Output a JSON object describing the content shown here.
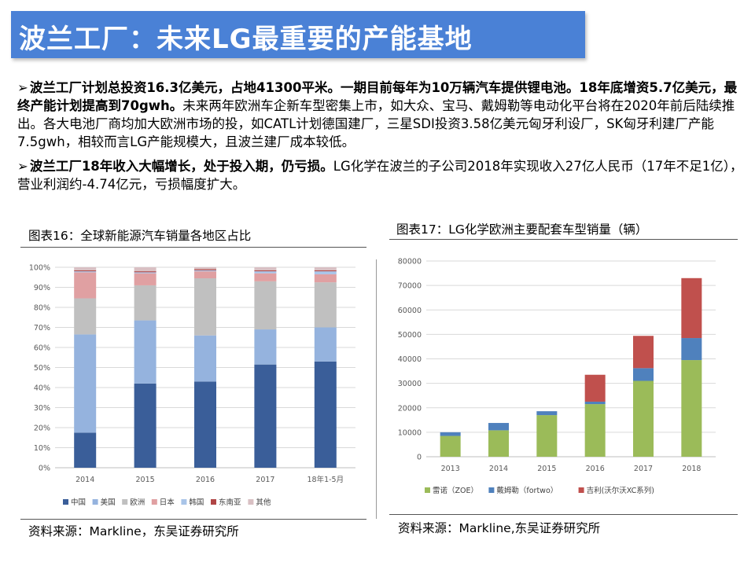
{
  "title": "波兰工厂：未来LG最重要的产能基地",
  "bullets": [
    {
      "arrow": "➢",
      "bold": "波兰工厂计划总投资16.3亿美元，占地41300平米。一期目前每年为10万辆汽车提供锂电池。18年底增资5.7亿美元，最终产能计划提高到70gwh。",
      "text": "未来两年欧洲车企新车型密集上市，如大众、宝马、戴姆勒等电动化平台将在2020年前后陆续推出。各大电池厂商均加大欧洲市场的投，如CATL计划德国建厂，三星SDI投资3.58亿美元匈牙利设厂，SK匈牙利建厂产能7.5gwh，相较而言LG产能规模大，且波兰建厂成本较低。"
    },
    {
      "arrow": "➢",
      "bold": "波兰工厂18年收入大幅增长，处于投入期，仍亏损。",
      "text": "LG化学在波兰的子公司2018年实现收入27亿人民币（17年不足1亿），营业利润约-4.74亿元，亏损幅度扩大。"
    }
  ],
  "figure16": {
    "caption": "图表16：全球新能源汽车销量各地区占比",
    "source": "资料来源：Markline，东吴证券研究所"
  },
  "figure17": {
    "caption": "图表17：LG化学欧洲主要配套车型销量（辆）",
    "source": "资料来源：Markline,东吴证券研究所"
  },
  "chart_data": [
    {
      "type": "bar",
      "stacked": true,
      "normalized": true,
      "title": "图表16：全球新能源汽车销量各地区占比",
      "categories": [
        "2014",
        "2015",
        "2016",
        "2017",
        "18年1-5月"
      ],
      "ylim": [
        0,
        100
      ],
      "yticks": [
        "0%",
        "10%",
        "20%",
        "30%",
        "40%",
        "50%",
        "60%",
        "70%",
        "80%",
        "90%",
        "100%"
      ],
      "legend_position": "bottom",
      "series": [
        {
          "name": "中国",
          "color": "#3a5e99",
          "values": [
            17.5,
            42,
            43,
            51.5,
            53
          ]
        },
        {
          "name": "美国",
          "color": "#95b3de",
          "values": [
            49,
            31.5,
            23,
            17.5,
            17
          ]
        },
        {
          "name": "欧洲",
          "color": "#c0c0c0",
          "values": [
            18,
            17.5,
            28.5,
            24,
            22.5
          ]
        },
        {
          "name": "日本",
          "color": "#e0a0a2",
          "values": [
            13,
            6,
            3.5,
            4,
            4
          ]
        },
        {
          "name": "韩国",
          "color": "#a9c4e8",
          "values": [
            0.5,
            0.5,
            0.5,
            1,
            1.5
          ]
        },
        {
          "name": "东南亚",
          "color": "#b04545",
          "values": [
            0.5,
            0.5,
            0.5,
            0.5,
            0.5
          ]
        },
        {
          "name": "其他",
          "color": "#d9c0c3",
          "values": [
            1.5,
            2,
            1,
            1.5,
            1.5
          ]
        }
      ]
    },
    {
      "type": "bar",
      "stacked": true,
      "title": "图表17：LG化学欧洲主要配套车型销量（辆）",
      "categories": [
        "2013",
        "2014",
        "2015",
        "2016",
        "2017",
        "2018"
      ],
      "ylim": [
        0,
        80000
      ],
      "yticks": [
        "0",
        "10000",
        "20000",
        "30000",
        "40000",
        "50000",
        "60000",
        "70000",
        "80000"
      ],
      "legend_position": "bottom",
      "series": [
        {
          "name": "雷诺（ZOE）",
          "color": "#9bbb59",
          "values": [
            8500,
            10800,
            17000,
            21500,
            31000,
            39500
          ]
        },
        {
          "name": "戴姆勒（fortwo）",
          "color": "#4f81bd",
          "values": [
            1500,
            3000,
            1600,
            1000,
            5200,
            9000
          ]
        },
        {
          "name": "吉利(沃尔沃XC系列)",
          "color": "#c0504d",
          "values": [
            0,
            0,
            0,
            11000,
            13200,
            24500
          ]
        }
      ]
    }
  ]
}
